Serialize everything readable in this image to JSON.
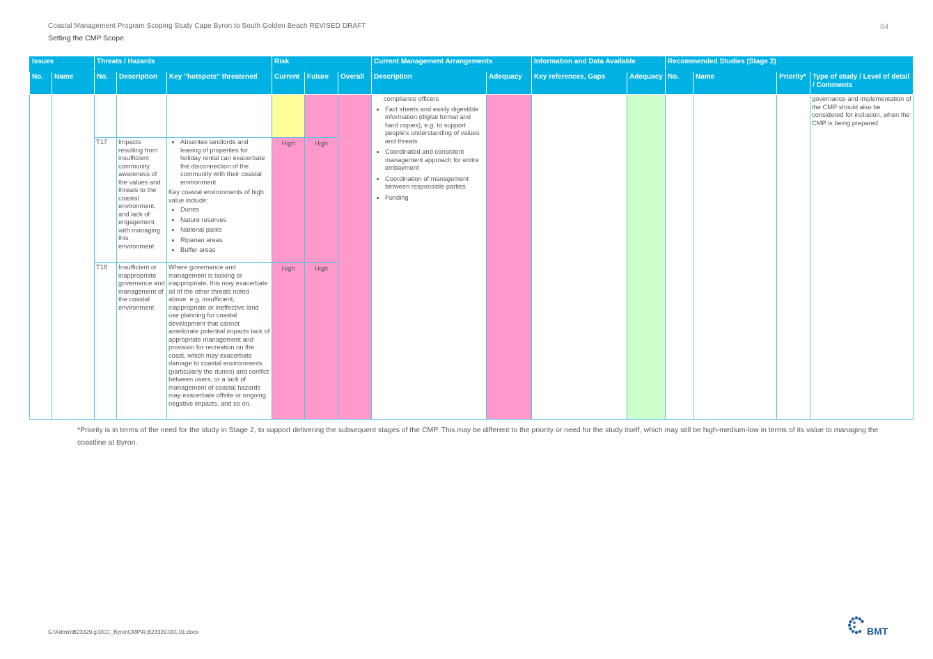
{
  "header": {
    "title": "Coastal Management Program Scoping Study Cape Byron to South Golden Beach REVISED DRAFT",
    "subtitle": "Setting the CMP Scope",
    "page_number": "84"
  },
  "table": {
    "groups": [
      "Issues",
      "Threats / Hazards",
      "Risk",
      "Current Management Arrangements",
      "Information and Data Available",
      "Recommended Studies (Stage 2)"
    ],
    "columns": [
      "No.",
      "Name",
      "No.",
      "Description",
      "Key \"hotspots\" threatened",
      "Current",
      "Future",
      "Overall",
      "Description",
      "Adequacy",
      "Key references, Gaps",
      "Adequacy",
      "No.",
      "Name",
      "Priority*",
      "Type of study / Level of detail / Comments"
    ],
    "cont_mgmt_lead": "compliance officers",
    "mgmt_bullets": [
      "Fact sheets and easily digestible information (digital format and hard copies), e.g. to support people's understanding of values and threats",
      "Coordinated and consistent management approach for entire embayment",
      "Coordination of management between responsible parties",
      "Funding"
    ],
    "comments_cont": "governance and implementation of the CMP should also be considered for inclusion, when the CMP is being prepared",
    "rows": [
      {
        "no": "T17",
        "description": "Impacts resulting from insufficient community awareness of the values and threats to the coastal environment, and lack of engagement with managing this environment",
        "hotspot_bullets": [
          "Absentee landlords and leasing of properties for holiday rental can exacerbate the disconnection of the community with their coastal environment"
        ],
        "hotspot_intro": "Key coastal environments of high value include:",
        "hotspot_list": [
          "Dunes",
          "Nature reserves",
          "National parks",
          "Riparian areas",
          "Buffer areas"
        ],
        "current": "High",
        "future": "High"
      },
      {
        "no": "T18",
        "description": "Insufficient or inappropriate governance and management of the coastal environment",
        "hotspot_text": "Where governance and management is lacking or inappropriate, this may exacerbate all of the other threats noted above. e.g. insufficient, inappropriate or ineffective land use planning for coastal development that cannot ameliorate potential impacts lack of appropriate management and provision for recreation on the coast, which may exacerbate damage to coastal environments (particularly the dunes) and conflict between users, or a lack of management of coastal hazards may exacerbate offsite or ongoing negative impacts, and so on.",
        "current": "High",
        "future": "High"
      }
    ]
  },
  "footnote": "*Priority is in terms of the need for the study in Stage 2, to support delivering the subsequent stages of the CMP. This may be different to the priority or need for the study itself, which may still be high-medium-low in terms of its value to managing the coastline at Byron.",
  "footer": {
    "path": "G:\\Admin\\B23329.g.DCC_ByronCMP\\R.B23329.001.01.docx",
    "logo_text": "BMT"
  },
  "colors": {
    "header_blue": "#00b2e3",
    "risk_pink": "#ff99cc",
    "risk_yellow": "#ffff99",
    "adequacy_green": "#ccffcc",
    "risk_text": "#a0008c"
  }
}
